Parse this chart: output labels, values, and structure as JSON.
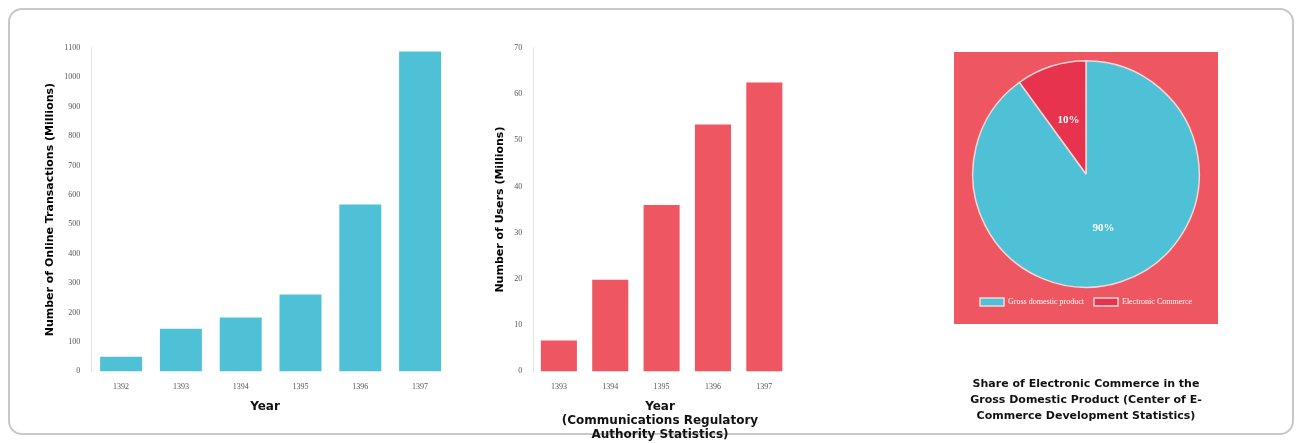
{
  "chart_data": [
    {
      "type": "bar",
      "ylabel": "Number of Online Transactions (Millions)",
      "xlabel": "Year",
      "categories": [
        "1392",
        "1393",
        "1394",
        "1395",
        "1396",
        "1397"
      ],
      "values": [
        50,
        145,
        183,
        261,
        567,
        1087
      ],
      "color": "#4fc1d6",
      "ylim": [
        0,
        1100
      ],
      "yticks": [
        0,
        100,
        200,
        300,
        400,
        500,
        600,
        700,
        800,
        900,
        1000,
        1100
      ]
    },
    {
      "type": "bar",
      "ylabel": "Number of Users (Millions)",
      "xlabel": "Year\n(Communications Regulatory\nAuthority Statistics)",
      "categories": [
        "1393",
        "1394",
        "1395",
        "1396",
        "1397"
      ],
      "values": [
        6.7,
        19.8,
        36,
        53.4,
        62.5
      ],
      "color": "#ee5662",
      "ylim": [
        0,
        70
      ],
      "yticks": [
        0,
        10,
        20,
        30,
        40,
        50,
        60,
        70
      ]
    },
    {
      "type": "pie",
      "title": "Share of Electronic Commerce in the Gross Domestic Product (Center of E-Commerce Development Statistics)",
      "categories": [
        "Gross domestic product",
        "Electronic Commerce"
      ],
      "values": [
        90,
        10
      ],
      "colors": [
        "#4fc1d6",
        "#e8334f"
      ],
      "value_labels": [
        "90%",
        "10%"
      ],
      "legend": "bottom"
    }
  ]
}
